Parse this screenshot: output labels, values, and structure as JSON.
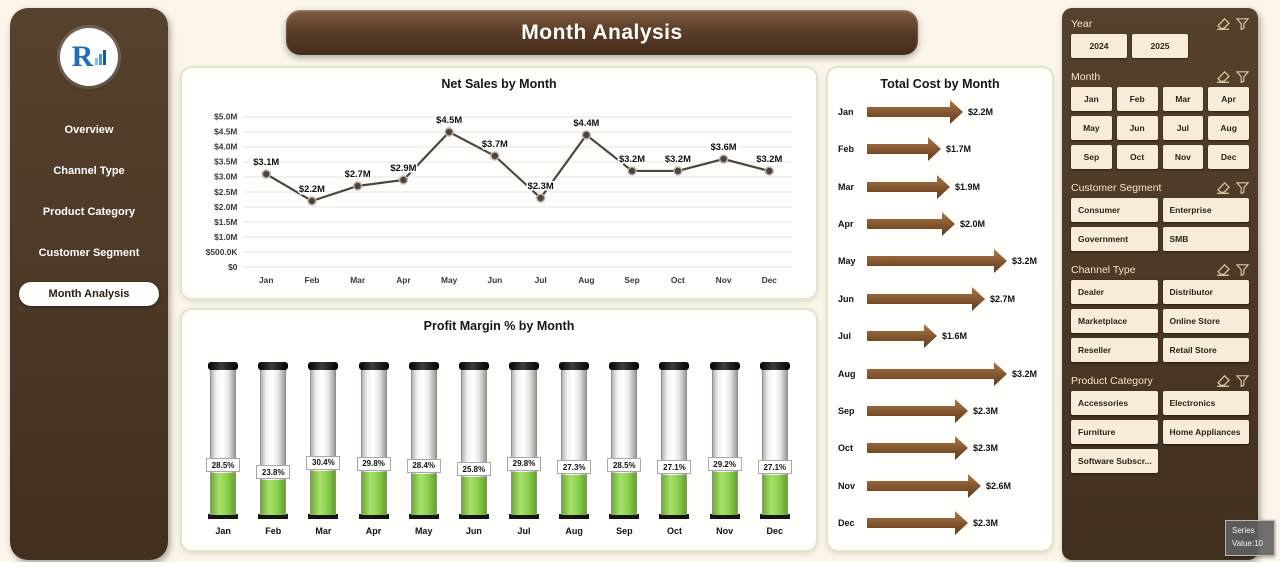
{
  "app": {
    "title": "Month Analysis"
  },
  "sidebar": {
    "logo_text": "R",
    "items": [
      {
        "label": "Overview",
        "active": false
      },
      {
        "label": "Channel Type",
        "active": false
      },
      {
        "label": "Product Category",
        "active": false
      },
      {
        "label": "Customer Segment",
        "active": false
      },
      {
        "label": "Month Analysis",
        "active": true
      }
    ]
  },
  "chart_data": [
    {
      "id": "net-sales",
      "type": "line",
      "title": "Net Sales by Month",
      "categories": [
        "Jan",
        "Feb",
        "Mar",
        "Apr",
        "May",
        "Jun",
        "Jul",
        "Aug",
        "Sep",
        "Oct",
        "Nov",
        "Dec"
      ],
      "values": [
        3.1,
        2.2,
        2.7,
        2.9,
        4.5,
        3.7,
        2.3,
        4.4,
        3.2,
        3.2,
        3.6,
        3.2
      ],
      "labels": [
        "$3.1M",
        "$2.2M",
        "$2.7M",
        "$2.9M",
        "$4.5M",
        "$3.7M",
        "$2.3M",
        "$4.4M",
        "$3.2M",
        "$3.2M",
        "$3.6M",
        "$3.2M"
      ],
      "ylim": [
        0,
        5
      ],
      "y_ticks": [
        "$5.0M",
        "$4.5M",
        "$4.0M",
        "$3.5M",
        "$3.0M",
        "$2.5M",
        "$2.0M",
        "$1.5M",
        "$1.0M",
        "$500.0K",
        "$0"
      ],
      "grid": true,
      "line_color": "#4d443b"
    },
    {
      "id": "profit-margin",
      "type": "bar",
      "title": "Profit Margin % by Month",
      "categories": [
        "Jan",
        "Feb",
        "Mar",
        "Apr",
        "May",
        "Jun",
        "Jul",
        "Aug",
        "Sep",
        "Oct",
        "Nov",
        "Dec"
      ],
      "values": [
        28.5,
        23.8,
        30.4,
        29.8,
        28.4,
        25.8,
        29.8,
        27.3,
        28.5,
        27.1,
        29.2,
        27.1
      ],
      "labels": [
        "28.5%",
        "23.8%",
        "30.4%",
        "29.8%",
        "28.4%",
        "25.8%",
        "29.8%",
        "27.3%",
        "28.5%",
        "27.1%",
        "29.2%",
        "27.1%"
      ],
      "fill_color": "#8fd14f"
    },
    {
      "id": "total-cost",
      "type": "bar",
      "orientation": "horizontal",
      "title": "Total Cost by Month",
      "categories": [
        "Jan",
        "Feb",
        "Mar",
        "Apr",
        "May",
        "Jun",
        "Jul",
        "Aug",
        "Sep",
        "Oct",
        "Nov",
        "Dec"
      ],
      "values": [
        2.2,
        1.7,
        1.9,
        2.0,
        3.2,
        2.7,
        1.6,
        3.2,
        2.3,
        2.3,
        2.6,
        2.3
      ],
      "labels": [
        "$2.2M",
        "$1.7M",
        "$1.9M",
        "$2.0M",
        "$3.2M",
        "$2.7M",
        "$1.6M",
        "$3.2M",
        "$2.3M",
        "$2.3M",
        "$2.6M",
        "$2.3M"
      ],
      "bar_color": "#8a5a31"
    }
  ],
  "filters": {
    "slicers": [
      {
        "id": "year",
        "label": "Year",
        "columns": 3,
        "options": [
          "2024",
          "2025"
        ]
      },
      {
        "id": "month",
        "label": "Month",
        "columns": 4,
        "options": [
          "Jan",
          "Feb",
          "Mar",
          "Apr",
          "May",
          "Jun",
          "Jul",
          "Aug",
          "Sep",
          "Oct",
          "Nov",
          "Dec"
        ]
      },
      {
        "id": "customer-segment",
        "label": "Customer Segment",
        "columns": 2,
        "options": [
          "Consumer",
          "Enterprise",
          "Government",
          "SMB"
        ]
      },
      {
        "id": "channel-type",
        "label": "Channel Type",
        "columns": 2,
        "options": [
          "Dealer",
          "Distributor",
          "Marketplace",
          "Online Store",
          "Reseller",
          "Retail Store"
        ]
      },
      {
        "id": "product-category",
        "label": "Product Category",
        "columns": 2,
        "options": [
          "Accessories",
          "Electronics",
          "Furniture",
          "Home Appliances",
          "Software Subscr..."
        ]
      }
    ]
  },
  "tooltip": {
    "line1": "Series",
    "line2": "Value:10"
  },
  "colors": {
    "panel_brown": "#4b3524",
    "accent_tan": "#d8c79f",
    "fill_green": "#8fd14f",
    "arrow_brown": "#8a5a31",
    "background": "#fbf5ea"
  }
}
